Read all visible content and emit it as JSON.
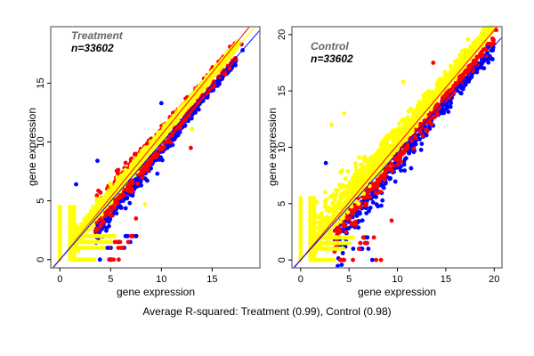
{
  "caption": "Average R-squared: Treatment (0.99), Control (0.98)",
  "colors": {
    "yellow": "#ffff00",
    "red": "#ff0000",
    "blue": "#0000ff",
    "frame": "#808080"
  },
  "chart_data": [
    {
      "type": "scatter",
      "title": "Treatment",
      "subtitle": "n=33602",
      "xlabel": "gene expression",
      "ylabel": "gene expression",
      "xlim": [
        -0.9,
        19.7
      ],
      "ylim": [
        -0.7,
        19.8
      ],
      "xticks": [
        "0",
        "5",
        "10",
        "15"
      ],
      "yticks": [
        "0",
        "5",
        "10",
        "15"
      ],
      "grid": false,
      "n": 33602,
      "lines": [
        {
          "color": "red",
          "slope": 1.06,
          "intercept": 0
        },
        {
          "color": "yellow",
          "slope": 1.03,
          "intercept": 0
        },
        {
          "color": "blue",
          "slope": 0.99,
          "intercept": 0
        }
      ],
      "cloud": {
        "xrange": [
          1.5,
          17.5
        ],
        "upper_spread": 1.0,
        "lower_spread": 1.2
      },
      "outliers": [
        {
          "x": 3.7,
          "y": 8.4,
          "c": "blue"
        },
        {
          "x": 1.6,
          "y": 6.4,
          "c": "blue"
        },
        {
          "x": 10.0,
          "y": 13.3,
          "c": "blue"
        },
        {
          "x": 7.5,
          "y": 2.0,
          "c": "blue"
        },
        {
          "x": 7.5,
          "y": 3.5,
          "c": "red"
        },
        {
          "x": 12.9,
          "y": 9.5,
          "c": "red"
        },
        {
          "x": 9.6,
          "y": 7.3,
          "c": "blue"
        },
        {
          "x": 13.0,
          "y": 11.1,
          "c": "yellow"
        },
        {
          "x": 8.4,
          "y": 4.7,
          "c": "yellow"
        },
        {
          "x": 18.0,
          "y": 17.8,
          "c": "blue"
        },
        {
          "x": 17.9,
          "y": 18.3,
          "c": "red"
        },
        {
          "x": 5.8,
          "y": 0,
          "c": "red"
        },
        {
          "x": 5.3,
          "y": 0,
          "c": "red"
        },
        {
          "x": 4.7,
          "y": 1,
          "c": "blue"
        }
      ]
    },
    {
      "type": "scatter",
      "title": "Control",
      "subtitle": "n=33602",
      "xlabel": "gene expression",
      "ylabel": "gene expression",
      "xlim": [
        -0.9,
        20.8
      ],
      "ylim": [
        -0.7,
        20.7
      ],
      "xticks": [
        "0",
        "5",
        "10",
        "15",
        "20"
      ],
      "yticks": [
        "0",
        "5",
        "10",
        "15",
        "20"
      ],
      "grid": false,
      "n": 33602,
      "lines": [
        {
          "color": "yellow",
          "slope": 1.08,
          "intercept": 0
        },
        {
          "color": "red",
          "slope": 1.02,
          "intercept": 0
        },
        {
          "color": "blue",
          "slope": 0.95,
          "intercept": 0
        }
      ],
      "cloud": {
        "xrange": [
          1.5,
          20.0
        ],
        "upper_spread": 3.0,
        "lower_spread": 2.2
      },
      "outliers": [
        {
          "x": 13.7,
          "y": 17.5,
          "c": "red"
        },
        {
          "x": 2.6,
          "y": 8.6,
          "c": "blue"
        },
        {
          "x": 9.4,
          "y": 3.5,
          "c": "red"
        },
        {
          "x": 10.6,
          "y": 15.8,
          "c": "yellow"
        },
        {
          "x": 4.5,
          "y": 13.0,
          "c": "yellow"
        },
        {
          "x": 3.2,
          "y": 12.0,
          "c": "yellow"
        },
        {
          "x": 8.3,
          "y": 0,
          "c": "red"
        },
        {
          "x": 7.8,
          "y": 0,
          "c": "red"
        },
        {
          "x": 7.4,
          "y": 0,
          "c": "blue"
        },
        {
          "x": 7.0,
          "y": 1,
          "c": "blue"
        },
        {
          "x": 19.4,
          "y": 18.9,
          "c": "blue"
        },
        {
          "x": 20.2,
          "y": 20.4,
          "c": "red"
        }
      ]
    }
  ]
}
